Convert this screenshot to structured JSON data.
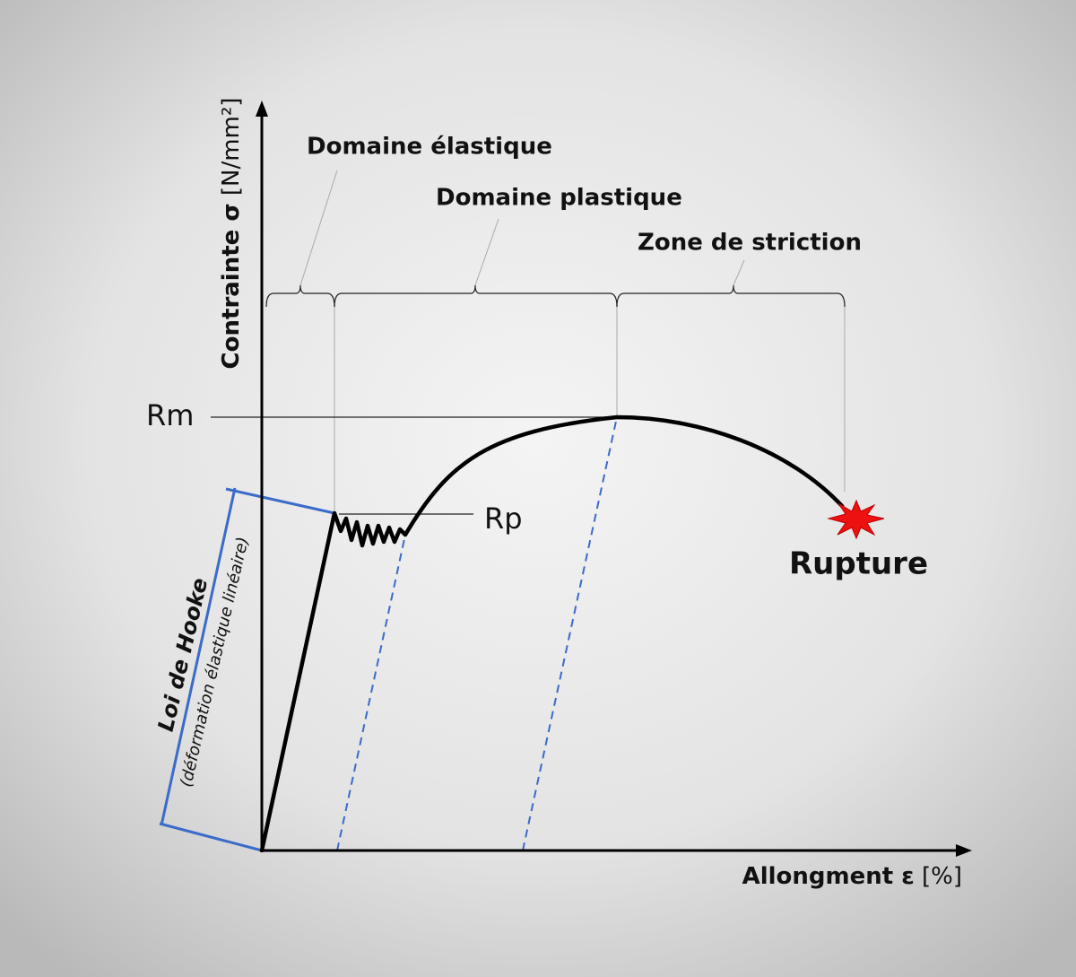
{
  "y_axis": {
    "label": "Contrainte σ",
    "unit": "[N/mm²]"
  },
  "x_axis": {
    "label": "Allongment ε",
    "unit": "[%]"
  },
  "zones": [
    "Domaine élastique",
    "Domaine plastique",
    "Zone de striction"
  ],
  "points": {
    "rm": "Rm",
    "rp": "Rp",
    "rupture": "Rupture"
  },
  "hooke": {
    "title": "Loi de Hooke",
    "subtitle": "(déformation élastique linéaire)"
  }
}
